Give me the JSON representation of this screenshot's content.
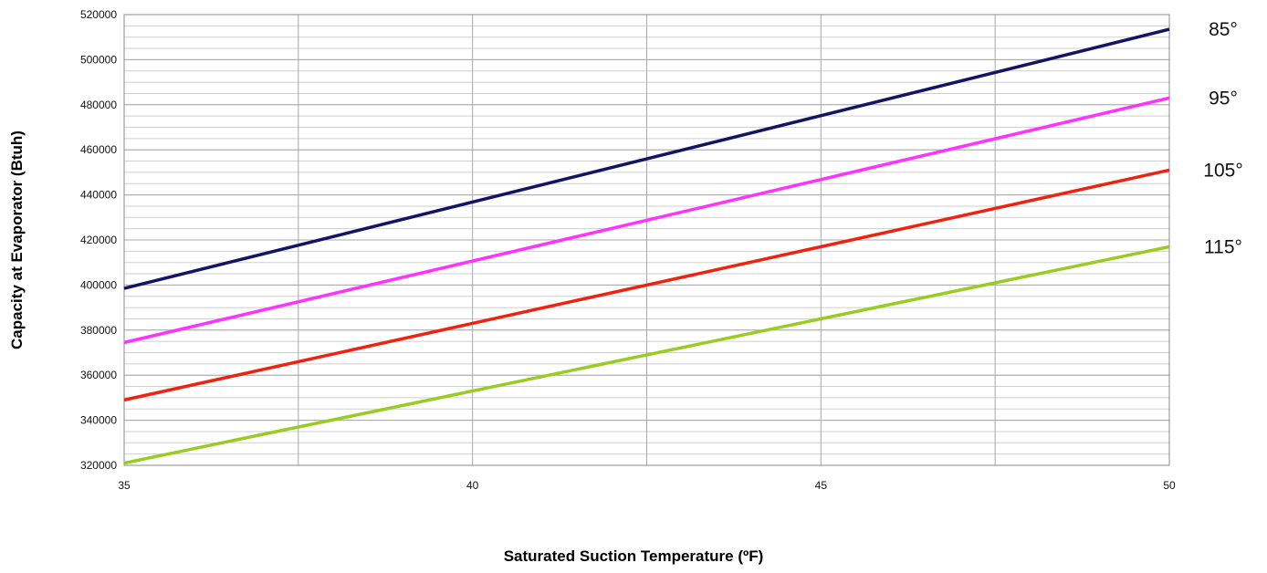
{
  "chart_data": {
    "type": "line",
    "title": "",
    "xlabel": "Saturated Suction Temperature (ºF)",
    "ylabel": "Capacity at Evaporator (Btuh)",
    "xlim": [
      35,
      50
    ],
    "ylim": [
      320000,
      520000
    ],
    "x_ticks": [
      35,
      40,
      45,
      50
    ],
    "x_tick_labels": [
      "35",
      "40",
      "45",
      "50"
    ],
    "y_ticks": [
      320000,
      340000,
      360000,
      380000,
      400000,
      420000,
      440000,
      460000,
      480000,
      500000,
      520000
    ],
    "y_tick_labels": [
      "320000",
      "340000",
      "360000",
      "380000",
      "400000",
      "420000",
      "440000",
      "460000",
      "480000",
      "500000",
      "520000"
    ],
    "grid": true,
    "legend": "none",
    "series": [
      {
        "name": "85°",
        "color": "#141464",
        "x": [
          35,
          50
        ],
        "values": [
          398500,
          513500
        ]
      },
      {
        "name": "95°",
        "color": "#ff33ff",
        "x": [
          35,
          50
        ],
        "values": [
          374500,
          483000
        ]
      },
      {
        "name": "105°",
        "color": "#ee2211",
        "x": [
          35,
          50
        ],
        "values": [
          349000,
          451000
        ]
      },
      {
        "name": "115°",
        "color": "#99cc22",
        "x": [
          35,
          50
        ],
        "values": [
          321000,
          417000
        ]
      }
    ]
  }
}
